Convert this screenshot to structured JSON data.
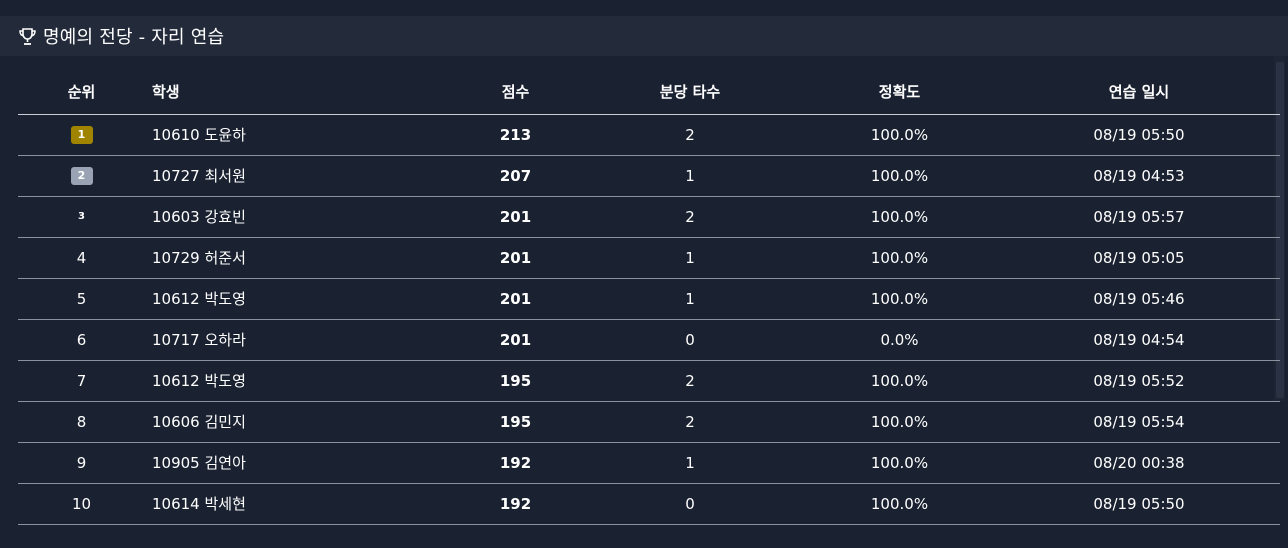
{
  "header": {
    "icon": "trophy-icon",
    "title": "명예의 전당 - 자리 연습"
  },
  "table": {
    "columns": [
      "순위",
      "학생",
      "점수",
      "분당 타수",
      "정확도",
      "연습 일시"
    ],
    "rows": [
      {
        "rank": "1",
        "medal": "gold",
        "student": "10610 도윤하",
        "score": "213",
        "wpm": "2",
        "accuracy": "100.0%",
        "date": "08/19 05:50"
      },
      {
        "rank": "2",
        "medal": "silver",
        "student": "10727 최서원",
        "score": "207",
        "wpm": "1",
        "accuracy": "100.0%",
        "date": "08/19 04:53"
      },
      {
        "rank": "3",
        "medal": "bronze",
        "student": "10603 강효빈",
        "score": "201",
        "wpm": "2",
        "accuracy": "100.0%",
        "date": "08/19 05:57"
      },
      {
        "rank": "4",
        "medal": "",
        "student": "10729 허준서",
        "score": "201",
        "wpm": "1",
        "accuracy": "100.0%",
        "date": "08/19 05:05"
      },
      {
        "rank": "5",
        "medal": "",
        "student": "10612 박도영",
        "score": "201",
        "wpm": "1",
        "accuracy": "100.0%",
        "date": "08/19 05:46"
      },
      {
        "rank": "6",
        "medal": "",
        "student": "10717 오하라",
        "score": "201",
        "wpm": "0",
        "accuracy": "0.0%",
        "date": "08/19 04:54"
      },
      {
        "rank": "7",
        "medal": "",
        "student": "10612 박도영",
        "score": "195",
        "wpm": "2",
        "accuracy": "100.0%",
        "date": "08/19 05:52"
      },
      {
        "rank": "8",
        "medal": "",
        "student": "10606 김민지",
        "score": "195",
        "wpm": "2",
        "accuracy": "100.0%",
        "date": "08/19 05:54"
      },
      {
        "rank": "9",
        "medal": "",
        "student": "10905 김연아",
        "score": "192",
        "wpm": "1",
        "accuracy": "100.0%",
        "date": "08/20 00:38"
      },
      {
        "rank": "10",
        "medal": "",
        "student": "10614 박세현",
        "score": "192",
        "wpm": "0",
        "accuracy": "100.0%",
        "date": "08/19 05:50"
      }
    ]
  },
  "colors": {
    "background": "#1a2130",
    "header_bg": "#232b3b",
    "gold": "#a08400",
    "silver": "#9aa3b4"
  }
}
